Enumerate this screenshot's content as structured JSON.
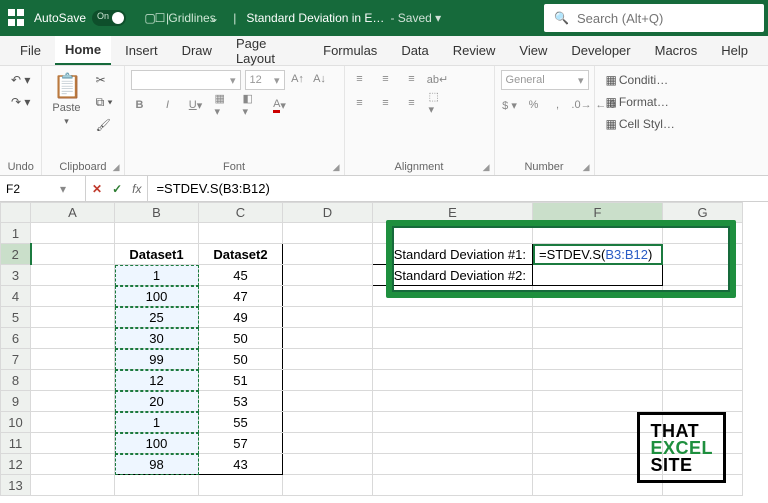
{
  "titlebar": {
    "autosave_label": "AutoSave",
    "autosave_state": "On",
    "gridlines_label": "Gridlines",
    "doc_title": "Standard Deviation in E…",
    "saved_status": "Saved",
    "search_placeholder": "Search (Alt+Q)"
  },
  "tabs": {
    "file": "File",
    "home": "Home",
    "insert": "Insert",
    "draw": "Draw",
    "page_layout": "Page Layout",
    "formulas": "Formulas",
    "data": "Data",
    "review": "Review",
    "view": "View",
    "developer": "Developer",
    "macros": "Macros",
    "help": "Help"
  },
  "ribbon": {
    "undo_label": "Undo",
    "clipboard_label": "Clipboard",
    "paste_label": "Paste",
    "font_label": "Font",
    "font_name": "",
    "font_size": "12",
    "alignment_label": "Alignment",
    "number_label": "Number",
    "number_format": "General",
    "styles_cond": "Conditi…",
    "styles_format": "Format…",
    "styles_cell": "Cell Styl…"
  },
  "fxbar": {
    "namebox": "F2",
    "formula": "=STDEV.S(B3:B12)"
  },
  "columns": [
    "A",
    "B",
    "C",
    "D",
    "E",
    "F",
    "G"
  ],
  "rows": [
    "1",
    "2",
    "3",
    "4",
    "5",
    "6",
    "7",
    "8",
    "9",
    "10",
    "11",
    "12",
    "13"
  ],
  "active_col": "F",
  "active_row": "2",
  "table": {
    "headers": {
      "b": "Dataset1",
      "c": "Dataset2"
    },
    "data": [
      {
        "b": "1",
        "c": "45"
      },
      {
        "b": "100",
        "c": "47"
      },
      {
        "b": "25",
        "c": "49"
      },
      {
        "b": "30",
        "c": "50"
      },
      {
        "b": "99",
        "c": "50"
      },
      {
        "b": "12",
        "c": "51"
      },
      {
        "b": "20",
        "c": "53"
      },
      {
        "b": "1",
        "c": "55"
      },
      {
        "b": "100",
        "c": "57"
      },
      {
        "b": "98",
        "c": "43"
      }
    ]
  },
  "callout": {
    "e2": "Standard Deviation #1:",
    "e3": "Standard Deviation #2:",
    "f2_pre": "=STDEV.S(",
    "f2_ref": "B3:B12",
    "f2_post": ")"
  },
  "logo": {
    "l1": "THAT",
    "l2": "EXCEL",
    "l3": "SITE"
  },
  "colors": {
    "brand": "#166a3b",
    "accent": "#1e8f3e",
    "ref_blue": "#2a5cc5",
    "sel_bg": "#cadfca"
  }
}
